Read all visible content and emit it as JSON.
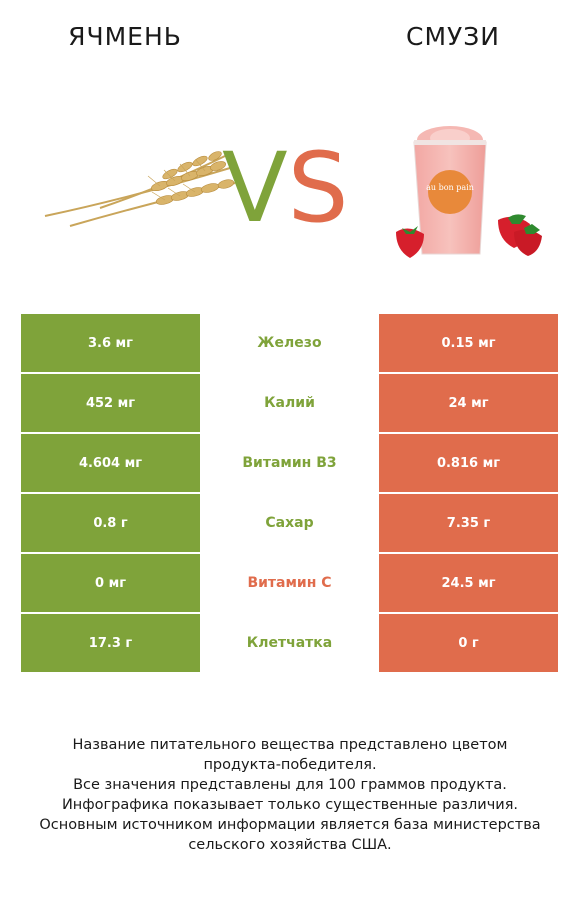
{
  "left_title": "ЯЧМЕНЬ",
  "right_title": "СМУЗИ",
  "vs": {
    "v": "V",
    "s": "S"
  },
  "colors": {
    "left": "#7fa33a",
    "right": "#e06c4c"
  },
  "images": {
    "left": "barley-wheat-stalks-image",
    "right": "strawberry-smoothie-cup-image",
    "cup_brand": "au bon pain"
  },
  "rows": [
    {
      "left": "3.6 мг",
      "nutrient": "Железо",
      "right": "0.15 мг",
      "winner": "left"
    },
    {
      "left": "452 мг",
      "nutrient": "Калий",
      "right": "24 мг",
      "winner": "left"
    },
    {
      "left": "4.604 мг",
      "nutrient": "Витамин B3",
      "right": "0.816 мг",
      "winner": "left"
    },
    {
      "left": "0.8 г",
      "nutrient": "Сахар",
      "right": "7.35 г",
      "winner": "left"
    },
    {
      "left": "0 мг",
      "nutrient": "Витамин C",
      "right": "24.5 мг",
      "winner": "right"
    },
    {
      "left": "17.3 г",
      "nutrient": "Клетчатка",
      "right": "0 г",
      "winner": "left"
    }
  ],
  "footer": [
    "Название питательного вещества представлено цветом",
    "продукта-победителя.",
    "Все значения представлены для 100 граммов продукта.",
    "Инфографика показывает только существенные различия.",
    "Основным источником информации является база министерства",
    "сельского хозяйства США."
  ]
}
